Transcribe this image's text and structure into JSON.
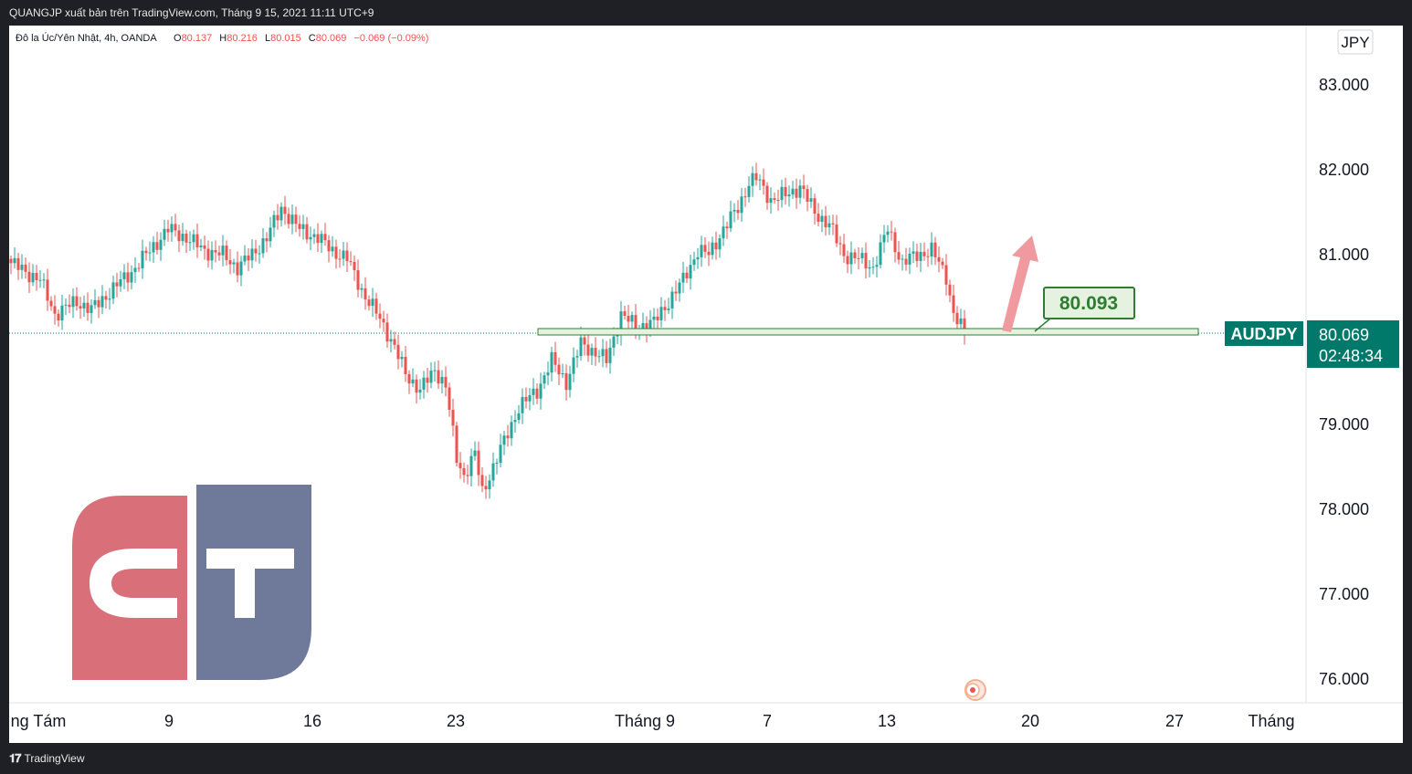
{
  "header": {
    "publisher_line": "QUANGJP xuất bản trên TradingView.com, Tháng 9 15, 2021 11:11 UTC+9"
  },
  "legend": {
    "symbol_desc": "Đô la Úc/Yên Nhật, 4h, OANDA",
    "o_label": "O",
    "o_value": "80.137",
    "h_label": "H",
    "h_value": "80.216",
    "l_label": "L",
    "l_value": "80.015",
    "c_label": "C",
    "c_value": "80.069",
    "change": "−0.069 (−0.09%)"
  },
  "currency_button": "JPY",
  "symbol_tag": "AUDJPY",
  "last_price_label": "80.069",
  "countdown": "02:48:34",
  "annotation_label": "80.093",
  "footer": {
    "brand": "TradingView"
  },
  "colors": {
    "up": "#26a69a",
    "down": "#ef5350",
    "zone_fill": "#e6f2e0",
    "zone_stroke": "#2e7d32",
    "arrow": "#f09aa0",
    "price_tag": "#00796b",
    "logo_red": "#d96f78",
    "logo_blue": "#6f7a9b"
  },
  "chart_data": {
    "type": "candlestick",
    "timeframe": "4h",
    "y_axis_ticks": [
      "83.000",
      "82.000",
      "81.000",
      "79.000",
      "78.000",
      "77.000",
      "76.000"
    ],
    "x_axis_ticks": [
      "ng Tám",
      "9",
      "16",
      "23",
      "Tháng 9",
      "7",
      "13",
      "20",
      "27",
      "Tháng"
    ],
    "ylim": [
      75.73,
      83.55
    ],
    "last_price": 80.069,
    "support_zone": [
      80.01,
      80.093
    ],
    "projection": "up",
    "close_path": [
      [
        0,
        80.9
      ],
      [
        8,
        80.7
      ],
      [
        12,
        80.3
      ],
      [
        18,
        80.45
      ],
      [
        22,
        80.35
      ],
      [
        28,
        80.6
      ],
      [
        33,
        80.8
      ],
      [
        39,
        81.1
      ],
      [
        43,
        81.3
      ],
      [
        48,
        81.2
      ],
      [
        53,
        81.05
      ],
      [
        58,
        81.0
      ],
      [
        62,
        80.85
      ],
      [
        66,
        81.0
      ],
      [
        70,
        81.2
      ],
      [
        74,
        81.55
      ],
      [
        79,
        81.3
      ],
      [
        84,
        81.2
      ],
      [
        88,
        81.05
      ],
      [
        92,
        80.95
      ],
      [
        97,
        80.5
      ],
      [
        101,
        80.25
      ],
      [
        104,
        80.0
      ],
      [
        108,
        79.6
      ],
      [
        112,
        79.4
      ],
      [
        116,
        79.65
      ],
      [
        119,
        79.45
      ],
      [
        122,
        78.6
      ],
      [
        124,
        78.4
      ],
      [
        127,
        78.65
      ],
      [
        129,
        78.2
      ],
      [
        132,
        78.5
      ],
      [
        135,
        78.8
      ],
      [
        139,
        79.2
      ],
      [
        144,
        79.4
      ],
      [
        148,
        79.75
      ],
      [
        152,
        79.5
      ],
      [
        156,
        79.95
      ],
      [
        160,
        79.85
      ],
      [
        163,
        79.75
      ],
      [
        167,
        80.3
      ],
      [
        171,
        80.15
      ],
      [
        176,
        80.2
      ],
      [
        180,
        80.45
      ],
      [
        184,
        80.7
      ],
      [
        188,
        81.05
      ],
      [
        191,
        81.0
      ],
      [
        195,
        81.3
      ],
      [
        199,
        81.55
      ],
      [
        202,
        81.85
      ],
      [
        204,
        81.9
      ],
      [
        208,
        81.65
      ],
      [
        212,
        81.7
      ],
      [
        216,
        81.8
      ],
      [
        220,
        81.5
      ],
      [
        224,
        81.35
      ],
      [
        228,
        81.0
      ],
      [
        232,
        80.95
      ],
      [
        236,
        80.85
      ],
      [
        240,
        81.3
      ],
      [
        244,
        80.9
      ],
      [
        248,
        81.0
      ],
      [
        252,
        81.05
      ],
      [
        256,
        80.75
      ],
      [
        258,
        80.3
      ],
      [
        261,
        80.069
      ]
    ]
  }
}
